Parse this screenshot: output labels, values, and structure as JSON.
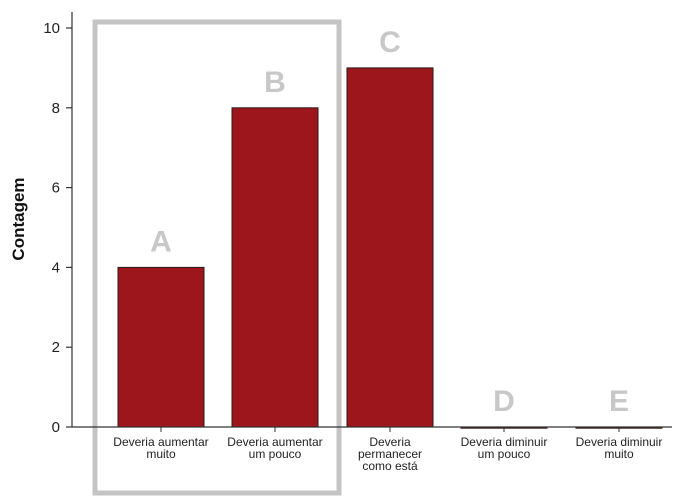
{
  "chart_data": {
    "type": "bar",
    "ylabel": "Contagem",
    "xlabel": "",
    "ylim": [
      0,
      10
    ],
    "yticks": [
      "0",
      "2",
      "4",
      "6",
      "8",
      "10"
    ],
    "categories": [
      [
        "Deveria aumentar",
        "muito"
      ],
      [
        "Deveria aumentar",
        "um pouco"
      ],
      [
        "Deveria",
        "permanecer",
        "como está"
      ],
      [
        "Deveria diminuir",
        "um pouco"
      ],
      [
        "Deveria diminuir",
        "muito"
      ]
    ],
    "values": [
      4,
      8,
      9,
      0,
      0
    ],
    "annotations": [
      "A",
      "B",
      "C",
      "D",
      "E"
    ],
    "bar_color": "#9d161b",
    "highlight_box_color": "#c4c4c4",
    "grid": false
  }
}
